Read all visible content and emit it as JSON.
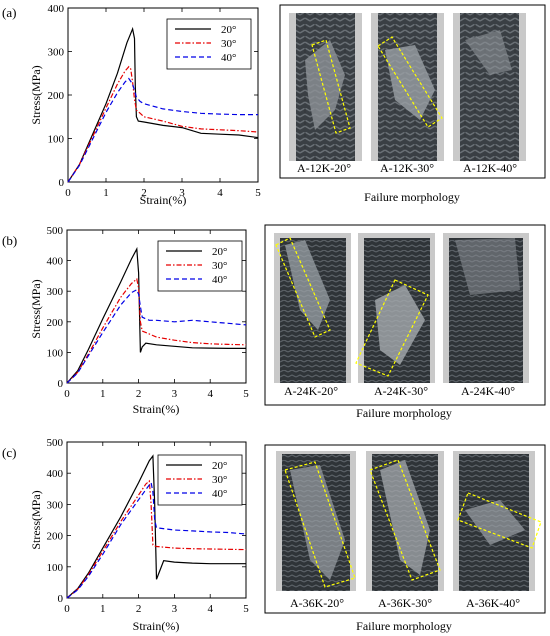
{
  "chart_data": [
    {
      "type": "line",
      "panel_label": "(a)",
      "xlabel": "Strain(%)",
      "ylabel": "Stress(MPa)",
      "xlim": [
        0,
        5
      ],
      "ylim": [
        0,
        400
      ],
      "xticks": [
        "0",
        "1",
        "2",
        "3",
        "4",
        "5"
      ],
      "yticks": [
        "0",
        "100",
        "200",
        "300",
        "400"
      ],
      "legend_position": "top-right",
      "series": [
        {
          "name": "20°",
          "color": "#000000",
          "dash": "solid",
          "x": [
            0,
            0.3,
            0.6,
            1.0,
            1.3,
            1.55,
            1.7,
            1.75,
            1.77,
            1.8,
            1.85,
            2.0,
            2.5,
            3.0,
            3.5,
            4.0,
            4.5,
            5.0
          ],
          "y": [
            0,
            40,
            100,
            180,
            250,
            320,
            352,
            330,
            220,
            150,
            140,
            138,
            130,
            125,
            112,
            110,
            108,
            102
          ]
        },
        {
          "name": "30°",
          "color": "#e60000",
          "dash": "dashdot",
          "x": [
            0,
            0.3,
            0.6,
            1.0,
            1.3,
            1.5,
            1.6,
            1.65,
            1.7,
            1.75,
            1.8,
            1.9,
            2.0,
            2.5,
            3.0,
            3.5,
            4.0,
            4.5,
            5.0
          ],
          "y": [
            0,
            40,
            95,
            170,
            225,
            255,
            265,
            260,
            230,
            190,
            165,
            158,
            150,
            140,
            128,
            122,
            120,
            118,
            115
          ]
        },
        {
          "name": "40°",
          "color": "#0000e6",
          "dash": "dashed",
          "x": [
            0,
            0.3,
            0.6,
            1.0,
            1.3,
            1.5,
            1.6,
            1.7,
            1.75,
            1.8,
            1.9,
            2.0,
            2.5,
            3.0,
            3.5,
            4.0,
            4.5,
            5.0
          ],
          "y": [
            0,
            38,
            90,
            160,
            205,
            230,
            238,
            225,
            210,
            195,
            185,
            180,
            168,
            162,
            158,
            156,
            155,
            155
          ]
        }
      ]
    },
    {
      "type": "line",
      "panel_label": "(b)",
      "xlabel": "Strain(%)",
      "ylabel": "Stress(MPa)",
      "xlim": [
        0,
        5
      ],
      "ylim": [
        0,
        500
      ],
      "xticks": [
        "0",
        "1",
        "2",
        "3",
        "4",
        "5"
      ],
      "yticks": [
        "0",
        "100",
        "200",
        "300",
        "400",
        "500"
      ],
      "legend_position": "top-right",
      "series": [
        {
          "name": "20°",
          "color": "#000000",
          "dash": "solid",
          "x": [
            0,
            0.3,
            0.6,
            1.0,
            1.5,
            1.8,
            1.95,
            2.0,
            2.05,
            2.1,
            2.2,
            2.5,
            3.0,
            3.5,
            4.0,
            4.5,
            5.0
          ],
          "y": [
            0,
            40,
            110,
            210,
            330,
            405,
            438,
            360,
            100,
            118,
            130,
            125,
            120,
            115,
            114,
            113,
            113
          ]
        },
        {
          "name": "30°",
          "color": "#e60000",
          "dash": "dashdot",
          "x": [
            0,
            0.3,
            0.6,
            1.0,
            1.5,
            1.8,
            1.95,
            2.0,
            2.05,
            2.1,
            2.3,
            2.5,
            3.0,
            3.5,
            4.0,
            4.5,
            5.0
          ],
          "y": [
            0,
            35,
            95,
            180,
            280,
            325,
            340,
            310,
            200,
            170,
            160,
            150,
            140,
            132,
            128,
            126,
            125
          ]
        },
        {
          "name": "40°",
          "color": "#0000e6",
          "dash": "dashed",
          "x": [
            0,
            0.3,
            0.6,
            1.0,
            1.5,
            1.8,
            1.95,
            2.0,
            2.05,
            2.1,
            2.3,
            2.5,
            3.0,
            3.5,
            4.0,
            4.5,
            5.0
          ],
          "y": [
            0,
            33,
            90,
            165,
            255,
            295,
            305,
            290,
            250,
            215,
            205,
            205,
            200,
            205,
            200,
            195,
            190
          ]
        }
      ]
    },
    {
      "type": "line",
      "panel_label": "(c)",
      "xlabel": "Strain(%)",
      "ylabel": "Stress(MPa)",
      "xlim": [
        0,
        5
      ],
      "ylim": [
        0,
        500
      ],
      "xticks": [
        "0",
        "1",
        "2",
        "3",
        "4",
        "5"
      ],
      "yticks": [
        "0",
        "100",
        "200",
        "300",
        "400",
        "500"
      ],
      "legend_position": "top-right",
      "series": [
        {
          "name": "20°",
          "color": "#000000",
          "dash": "solid",
          "x": [
            0,
            0.3,
            0.6,
            1.0,
            1.5,
            2.0,
            2.3,
            2.4,
            2.45,
            2.5,
            2.55,
            2.7,
            3.0,
            3.5,
            4.0,
            4.5,
            5.0
          ],
          "y": [
            0,
            30,
            80,
            160,
            260,
            370,
            440,
            455,
            300,
            60,
            75,
            120,
            115,
            112,
            110,
            110,
            110
          ]
        },
        {
          "name": "30°",
          "color": "#e60000",
          "dash": "dashdot",
          "x": [
            0,
            0.3,
            0.6,
            1.0,
            1.5,
            2.0,
            2.2,
            2.3,
            2.35,
            2.4,
            2.5,
            3.0,
            3.5,
            4.0,
            4.5,
            5.0
          ],
          "y": [
            0,
            28,
            75,
            150,
            245,
            330,
            365,
            375,
            300,
            170,
            165,
            160,
            158,
            157,
            156,
            155
          ]
        },
        {
          "name": "40°",
          "color": "#0000e6",
          "dash": "dashed",
          "x": [
            0,
            0.3,
            0.6,
            1.0,
            1.5,
            2.0,
            2.25,
            2.35,
            2.4,
            2.45,
            2.5,
            3.0,
            3.5,
            4.0,
            4.5,
            5.0
          ],
          "y": [
            0,
            26,
            70,
            140,
            235,
            315,
            355,
            370,
            340,
            250,
            225,
            218,
            215,
            212,
            210,
            205
          ]
        }
      ]
    }
  ],
  "photo_panels": [
    {
      "labels": [
        "A-12K-20°",
        "A-12K-30°",
        "A-12K-40°"
      ],
      "caption": "Failure morphology"
    },
    {
      "labels": [
        "A-24K-20°",
        "A-24K-30°",
        "A-24K-40°"
      ],
      "caption": "Failure morphology"
    },
    {
      "labels": [
        "A-36K-20°",
        "A-36K-30°",
        "A-36K-40°"
      ],
      "caption": "Failure morphology"
    }
  ]
}
